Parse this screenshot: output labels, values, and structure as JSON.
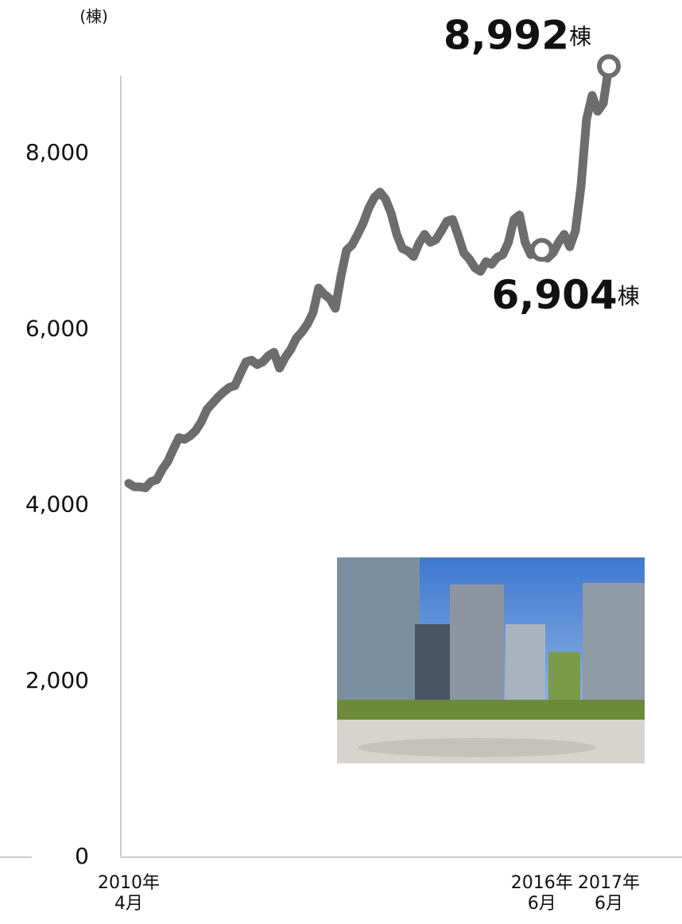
{
  "chart_data": {
    "type": "line",
    "y_unit": "(棟)",
    "categories": [
      "2010年\n4月",
      null,
      null,
      null,
      null,
      null,
      null,
      null,
      null,
      null,
      null,
      null,
      null,
      null,
      null,
      null,
      null,
      null,
      null,
      null,
      null,
      null,
      null,
      null,
      null,
      null,
      null,
      null,
      null,
      null,
      null,
      null,
      null,
      null,
      null,
      null,
      null,
      null,
      null,
      null,
      null,
      null,
      null,
      null,
      null,
      null,
      null,
      null,
      null,
      null,
      null,
      null,
      null,
      null,
      null,
      null,
      null,
      null,
      null,
      null,
      null,
      null,
      null,
      null,
      null,
      null,
      null,
      null,
      null,
      null,
      null,
      null,
      null,
      null,
      "2016年\n6月",
      null,
      null,
      null,
      null,
      null,
      null,
      null,
      null,
      null,
      null,
      null,
      "2017年\n6月"
    ],
    "values": [
      4250,
      4210,
      4210,
      4200,
      4270,
      4290,
      4410,
      4500,
      4640,
      4770,
      4750,
      4790,
      4850,
      4950,
      5090,
      5160,
      5230,
      5290,
      5340,
      5360,
      5500,
      5630,
      5650,
      5600,
      5630,
      5700,
      5740,
      5560,
      5680,
      5770,
      5900,
      5970,
      6060,
      6190,
      6470,
      6400,
      6350,
      6240,
      6600,
      6900,
      6960,
      7080,
      7210,
      7380,
      7500,
      7560,
      7480,
      7320,
      7080,
      6920,
      6890,
      6830,
      6980,
      7080,
      6990,
      7020,
      7120,
      7230,
      7250,
      7070,
      6870,
      6800,
      6700,
      6660,
      6770,
      6740,
      6820,
      6850,
      6990,
      7250,
      7300,
      6990,
      6850,
      6870,
      6904,
      6810,
      6870,
      6990,
      7080,
      6940,
      7120,
      7620,
      8390,
      8660,
      8480,
      8570,
      8992
    ],
    "color": "#6d6d6d",
    "ylim": [
      0,
      9000
    ],
    "yticks": [
      0,
      {
        "value": 2000,
        "label": "2,000"
      },
      {
        "value": 4000,
        "label": "4,000"
      },
      {
        "value": 6000,
        "label": "6,000"
      },
      {
        "value": 8000,
        "label": "8,000"
      }
    ],
    "grid": false,
    "annotations": [
      {
        "index": 86,
        "value": 8992,
        "label": "8,992",
        "unit": "棟"
      },
      {
        "index": 74,
        "value": 6904,
        "label": "6,904",
        "unit": "棟"
      }
    ]
  }
}
